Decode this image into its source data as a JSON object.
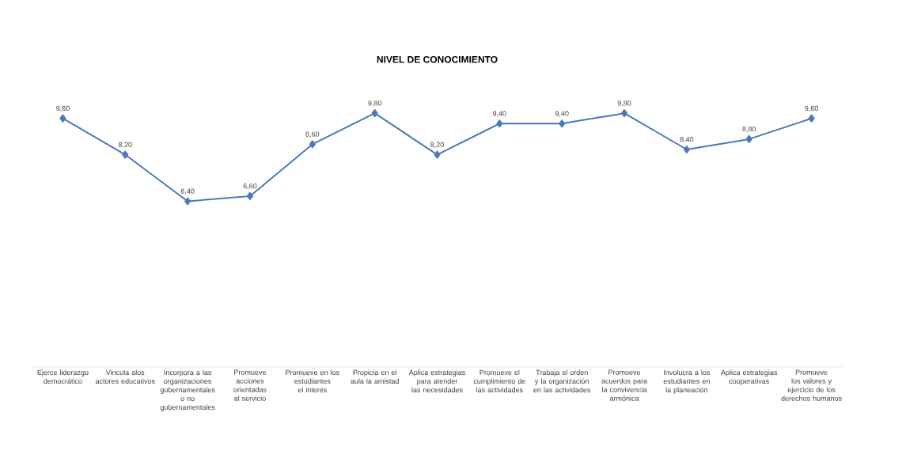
{
  "chart_data": {
    "type": "line",
    "title": "NIVEL DE CONOCIMIENTO",
    "categories": [
      "Ejerce liderazgo democrático",
      "Vincula alos actores educativos",
      "Incorpora a las organizaciones gubernamentales o no gubernamentales",
      "Promueve acciones orientadas al servicio",
      "Promueve en los estudiantes el interés",
      "Propicia en el aula la amistad",
      "Aplica estrategias para atender las necesidades",
      "Promueve el cumplimiento de las actividades",
      "Trabaja el orden y la organización en las actividades",
      "Promueve acuerdos para la convivencia armónica",
      "Involucra a los estudiantes en la planeación",
      "Aplica estrategias cooperativas",
      "Promueve los valores y ejercicio de los derechos humanos"
    ],
    "values": [
      9.6,
      8.2,
      6.4,
      6.6,
      8.6,
      9.8,
      8.2,
      9.4,
      9.4,
      9.8,
      8.4,
      8.8,
      9.6
    ],
    "value_labels": [
      "9,60",
      "8,20",
      "6,40",
      "6,60",
      "8,60",
      "9,80",
      "8,20",
      "9,40",
      "9,40",
      "9,80",
      "8,40",
      "8,80",
      "9,60"
    ],
    "color": "#4a7ab8",
    "marker": "diamond",
    "line_style": "solid"
  }
}
